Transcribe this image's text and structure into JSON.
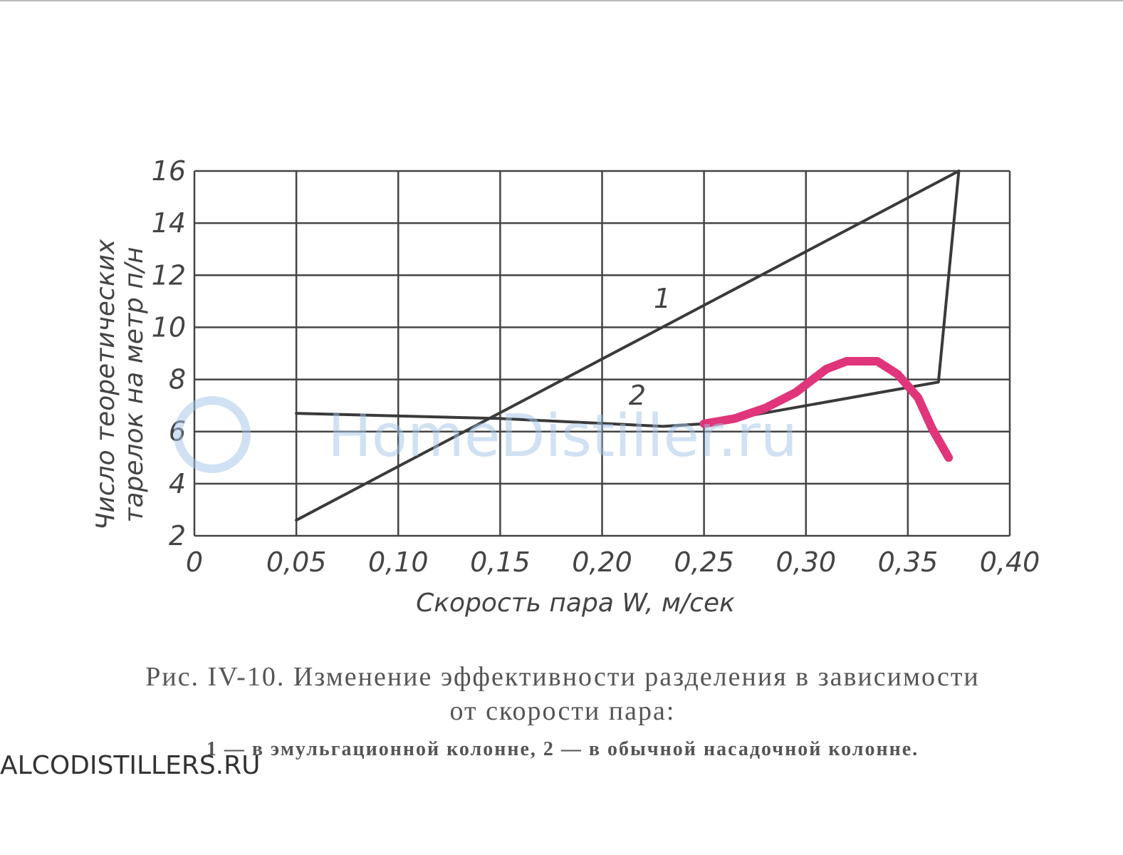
{
  "chart_data": {
    "type": "line",
    "ylabel": [
      "Число теоретических",
      "тарелок на метр п/н"
    ],
    "xlabel": "Скорость пара  W, м/сек",
    "caption": [
      "Рис. IV-10. Изменение эффективности разделения в зависимости",
      "от скорости пара:",
      "1 — в эмульгационной колонне, 2 — в обычной насадочной колонне."
    ],
    "watermarks": [
      "HomeDistiller.ru",
      "ALCODISTILLERS.RU"
    ],
    "xlim": [
      0,
      0.4
    ],
    "xticks": [
      0,
      {
        "value": 0.05,
        "label": "0,05"
      },
      {
        "value": 0.1,
        "label": "0,10"
      },
      {
        "value": 0.15,
        "label": "0,15"
      },
      {
        "value": 0.2,
        "label": "0,20"
      },
      {
        "value": 0.25,
        "label": "0,25"
      },
      {
        "value": 0.3,
        "label": "0,30"
      },
      {
        "value": 0.35,
        "label": "0,35"
      },
      {
        "value": 0.4,
        "label": "0,40"
      }
    ],
    "ylim": [
      2,
      16
    ],
    "yticks": [
      2,
      4,
      6,
      8,
      10,
      12,
      14,
      16
    ],
    "grid": true,
    "series": [
      {
        "name": "1",
        "color": "#3a3a3a",
        "x": [
          0.05,
          0.375
        ],
        "values": [
          2.6,
          16
        ]
      },
      {
        "name": "2",
        "color": "#3a3a3a",
        "x": [
          0.05,
          0.15,
          0.23,
          0.25,
          0.365,
          0.375
        ],
        "values": [
          6.7,
          6.5,
          6.2,
          6.3,
          7.9,
          16
        ]
      },
      {
        "color": "#e0357a",
        "x": [
          0.25,
          0.265,
          0.28,
          0.295,
          0.31,
          0.32,
          0.335,
          0.345,
          0.355,
          0.362,
          0.37
        ],
        "values": [
          6.3,
          6.5,
          6.9,
          7.5,
          8.4,
          8.7,
          8.7,
          8.2,
          7.3,
          6.1,
          5.0
        ]
      }
    ]
  }
}
